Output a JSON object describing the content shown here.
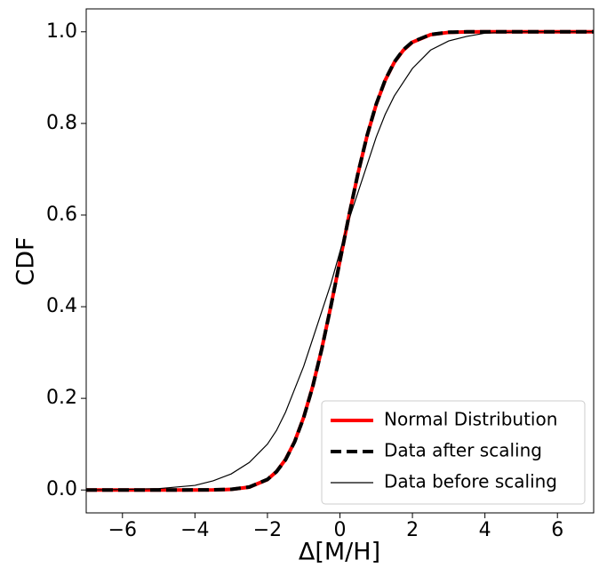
{
  "chart_data": {
    "type": "line",
    "xlabel": "Δ[M/H]",
    "ylabel": "CDF",
    "x": [
      -7,
      -6,
      -5,
      -4,
      -3.5,
      -3,
      -2.5,
      -2,
      -1.75,
      -1.5,
      -1.25,
      -1,
      -0.75,
      -0.5,
      -0.25,
      0,
      0.25,
      0.5,
      0.75,
      1,
      1.25,
      1.5,
      1.75,
      2,
      2.5,
      3,
      3.5,
      4,
      5,
      6,
      7
    ],
    "series": [
      {
        "name": "Normal Distribution",
        "color": "#ff0000",
        "style": "solid",
        "width": 4,
        "values": [
          0,
          0,
          0,
          3e-05,
          0.0002,
          0.0013,
          0.0062,
          0.0228,
          0.0401,
          0.0668,
          0.1056,
          0.1587,
          0.2266,
          0.3085,
          0.4013,
          0.5,
          0.5987,
          0.6915,
          0.7734,
          0.8413,
          0.8944,
          0.9332,
          0.9599,
          0.9772,
          0.9938,
          0.9987,
          0.9998,
          1,
          1,
          1,
          1
        ]
      },
      {
        "name": "Data after scaling",
        "color": "#000000",
        "style": "dashed",
        "width": 4,
        "values": [
          0,
          0,
          0,
          0.0001,
          0.0003,
          0.0015,
          0.0065,
          0.023,
          0.04,
          0.066,
          0.105,
          0.158,
          0.226,
          0.308,
          0.401,
          0.5,
          0.599,
          0.692,
          0.774,
          0.842,
          0.895,
          0.934,
          0.961,
          0.978,
          0.994,
          0.999,
          1,
          1,
          1,
          1,
          1
        ]
      },
      {
        "name": "Data before scaling",
        "color": "#000000",
        "style": "solid",
        "width": 1.2,
        "values": [
          0,
          0.001,
          0.003,
          0.01,
          0.02,
          0.035,
          0.06,
          0.1,
          0.13,
          0.17,
          0.22,
          0.27,
          0.33,
          0.39,
          0.45,
          0.52,
          0.59,
          0.65,
          0.71,
          0.77,
          0.82,
          0.86,
          0.89,
          0.92,
          0.96,
          0.98,
          0.99,
          0.997,
          1,
          1,
          1
        ]
      }
    ],
    "xlim": [
      -7,
      7
    ],
    "ylim": [
      -0.05,
      1.05
    ],
    "xticks": [
      {
        "value": -6,
        "label": "−6"
      },
      {
        "value": -4,
        "label": "−4"
      },
      {
        "value": -2,
        "label": "−2"
      },
      0,
      2,
      4,
      6
    ],
    "yticks": [
      {
        "value": 0,
        "label": "0.0"
      },
      {
        "value": 0.2,
        "label": "0.2"
      },
      {
        "value": 0.4,
        "label": "0.4"
      },
      {
        "value": 0.6,
        "label": "0.6"
      },
      {
        "value": 0.8,
        "label": "0.8"
      },
      {
        "value": 1,
        "label": "1.0"
      }
    ],
    "legend": "lower right",
    "grid": false
  }
}
